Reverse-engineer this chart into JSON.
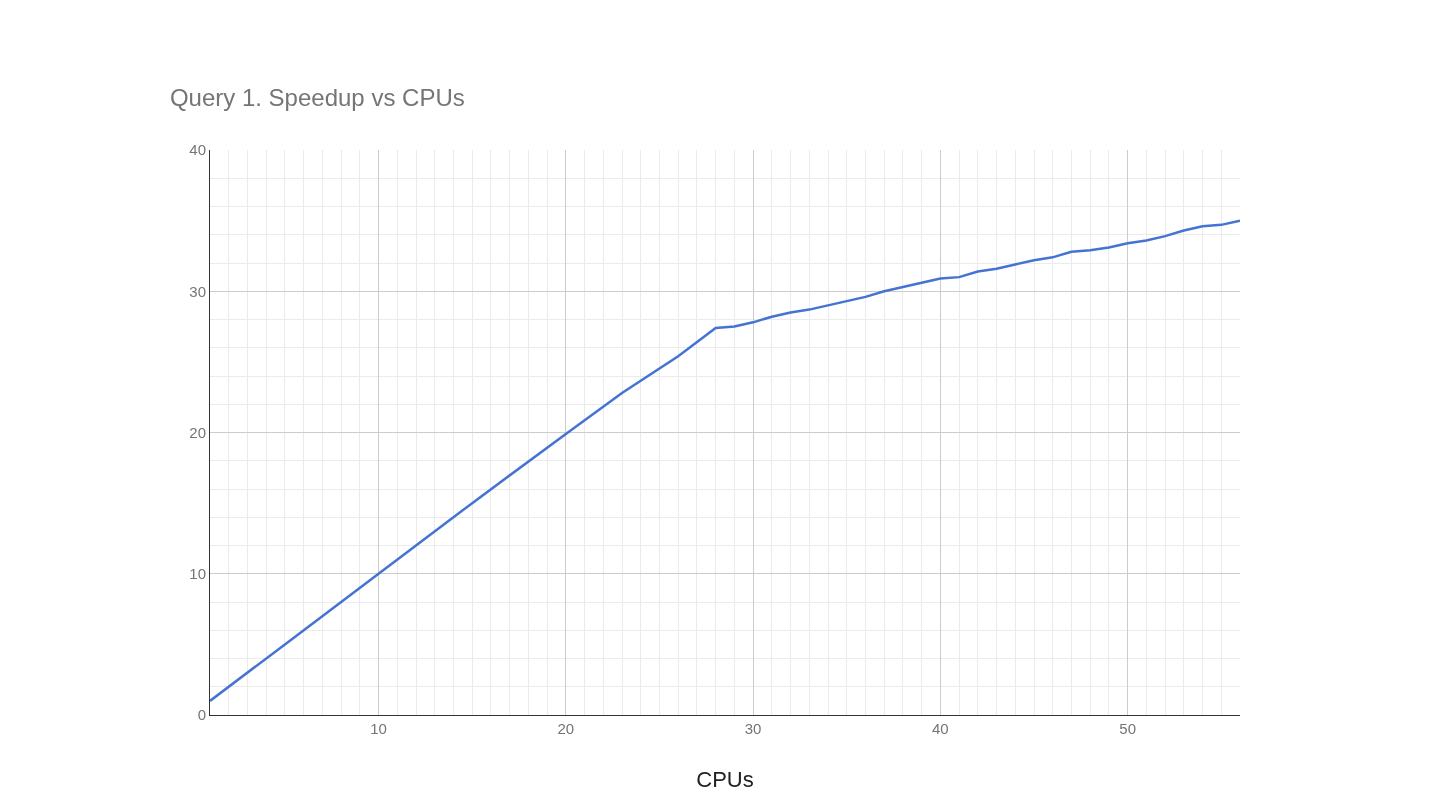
{
  "chart_data": {
    "type": "line",
    "title": "Query 1. Speedup vs CPUs",
    "xlabel": "CPUs",
    "x": [
      1,
      5,
      10,
      15,
      20,
      23,
      26,
      28,
      29,
      30,
      31,
      32,
      33,
      34,
      35,
      36,
      37,
      38,
      39,
      40,
      41,
      42,
      43,
      44,
      45,
      46,
      47,
      48,
      49,
      50,
      51,
      52,
      53,
      54,
      55,
      56
    ],
    "series": [
      {
        "color": "#4573d2",
        "values": [
          1,
          5,
          10,
          15,
          19.9,
          22.8,
          25.4,
          27.4,
          27.5,
          27.8,
          28.2,
          28.5,
          28.7,
          29.0,
          29.3,
          29.6,
          30.0,
          30.3,
          30.6,
          30.9,
          31.0,
          31.4,
          31.6,
          31.9,
          32.2,
          32.4,
          32.8,
          32.9,
          33.1,
          33.4,
          33.6,
          33.9,
          34.3,
          34.6,
          34.7,
          35.0
        ]
      }
    ],
    "xlim": [
      1,
      56
    ],
    "xticks": [
      10,
      20,
      30,
      40,
      50
    ],
    "ylim": [
      0,
      40
    ],
    "yticks": [
      0,
      10,
      20,
      30,
      40
    ],
    "grid": true,
    "marker": "none",
    "line_style": "solid"
  }
}
